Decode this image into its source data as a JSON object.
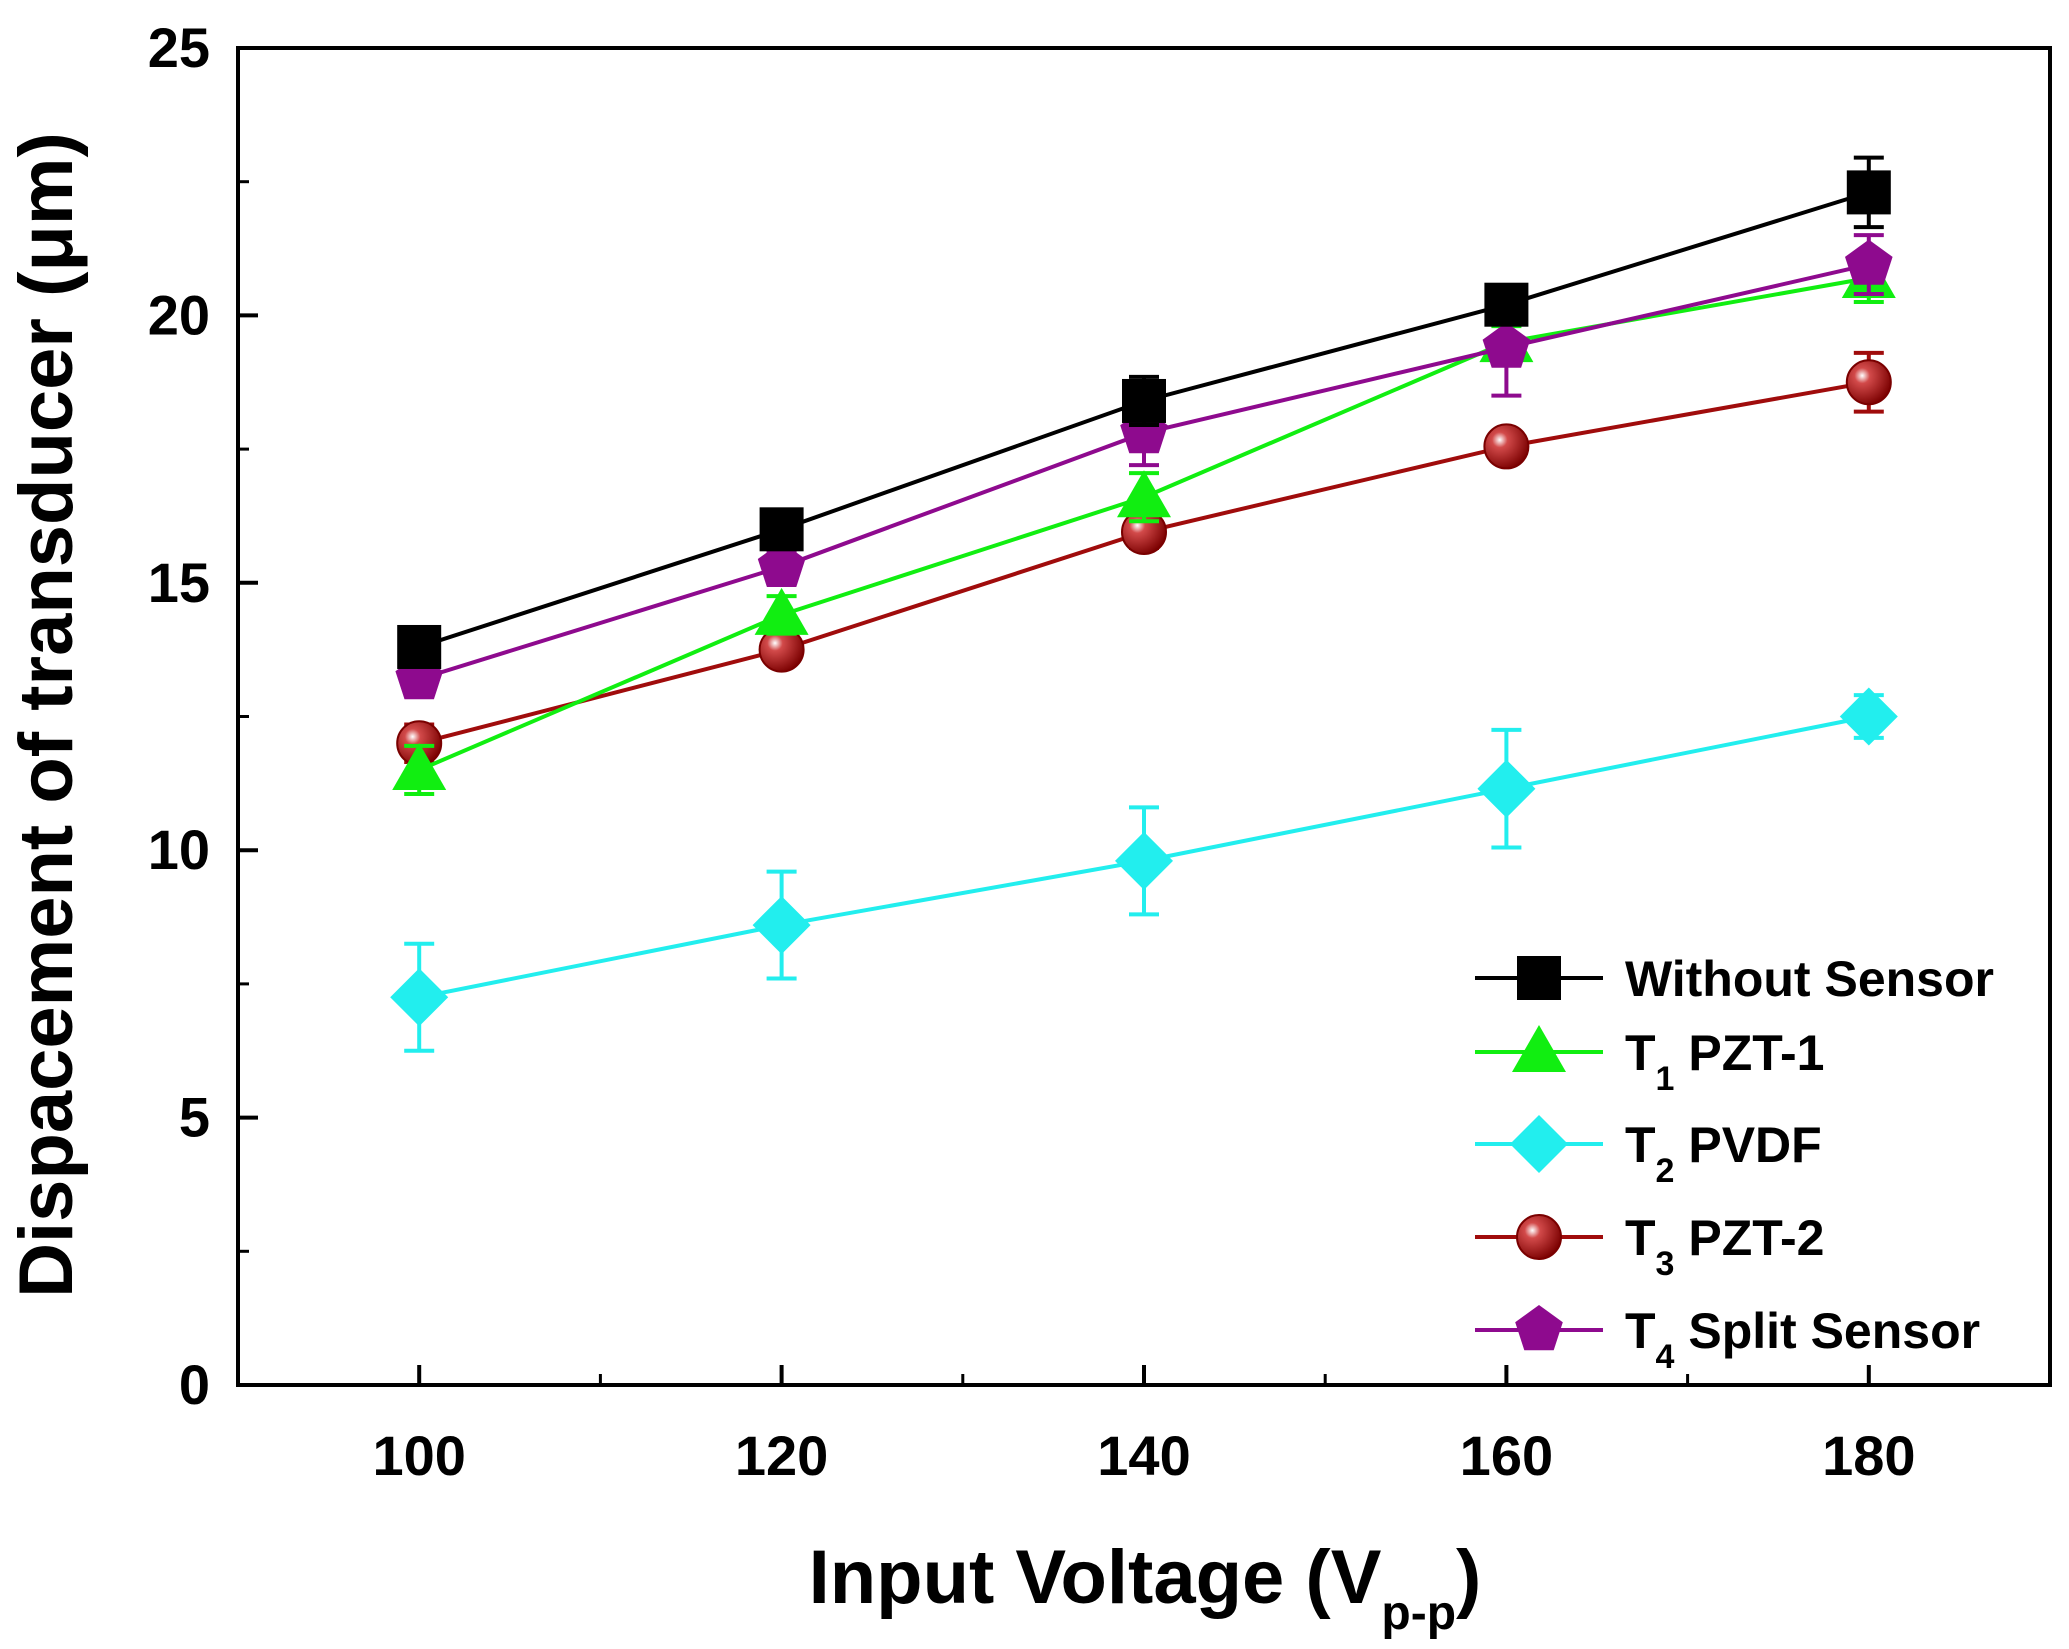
{
  "chart_data": {
    "type": "line",
    "title": "",
    "xlabel": "Input Voltage (V",
    "xlabel_sub": "p-p",
    "xlabel_close": ")",
    "ylabel": "Dispacement of transducer (μm)",
    "x": [
      100,
      120,
      140,
      160,
      180
    ],
    "x_ticks": [
      "100",
      "120",
      "140",
      "160",
      "180"
    ],
    "y_ticks": [
      "0",
      "5",
      "10",
      "15",
      "20",
      "25"
    ],
    "xlim": [
      90,
      190
    ],
    "ylim": [
      0,
      25
    ],
    "legend_position": "bottom-right",
    "series": [
      {
        "name": "Without Sensor",
        "legend_main": "Without Sensor",
        "legend_sub": "",
        "legend_rest": "",
        "color": "#000000",
        "marker": "square",
        "values": [
          13.8,
          16.0,
          18.4,
          20.2,
          22.3
        ],
        "errors": [
          0.25,
          0.25,
          0.45,
          0.3,
          0.65
        ]
      },
      {
        "name": "T1 PZT-1",
        "legend_main": "T",
        "legend_sub": "1",
        "legend_rest": " PZT-1",
        "color": "#11ee11",
        "marker": "triangle",
        "values": [
          11.5,
          14.4,
          16.6,
          19.5,
          20.7
        ],
        "errors": [
          0.45,
          0.35,
          0.45,
          0.3,
          0.45
        ]
      },
      {
        "name": "T2 PVDF",
        "legend_main": "T",
        "legend_sub": "2",
        "legend_rest": " PVDF",
        "color": "#22eeee",
        "marker": "diamond",
        "values": [
          7.25,
          8.6,
          9.8,
          11.15,
          12.5
        ],
        "errors": [
          1.0,
          1.0,
          1.0,
          1.1,
          0.4
        ]
      },
      {
        "name": "T3 PZT-2",
        "legend_main": "T",
        "legend_sub": "3",
        "legend_rest": " PZT-2",
        "color": "#a00c0c",
        "marker": "circle",
        "values": [
          12.0,
          13.75,
          15.95,
          17.55,
          18.75
        ],
        "errors": [
          0.35,
          0.25,
          0.3,
          0.2,
          0.55
        ]
      },
      {
        "name": "T4 Split Sensor",
        "legend_main": "T",
        "legend_sub": "4",
        "legend_rest": " Split Sensor",
        "color": "#8e0a8e",
        "marker": "pentagon",
        "values": [
          13.2,
          15.3,
          17.8,
          19.4,
          20.95
        ],
        "errors": [
          0.3,
          0.3,
          0.6,
          0.9,
          0.55
        ]
      }
    ]
  }
}
